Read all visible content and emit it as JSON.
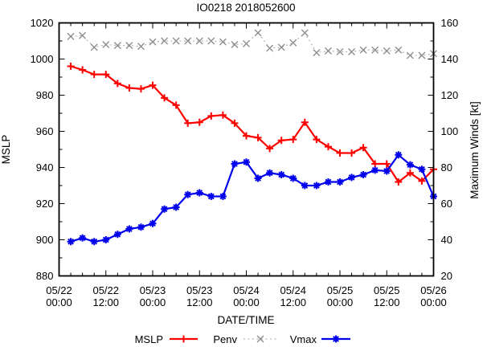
{
  "title": "IO0218 2018052600",
  "axes": {
    "y_left": {
      "label": "MSLP",
      "min": 880,
      "max": 1020,
      "major_step": 20,
      "minor_step": 10,
      "ticks": [
        1020,
        1000,
        980,
        960,
        940,
        920,
        900,
        880
      ]
    },
    "y_right": {
      "label": "Maximum Winds [kt]",
      "min": 20,
      "max": 160,
      "major_step": 20,
      "ticks": [
        160,
        140,
        120,
        100,
        80,
        60,
        40,
        20
      ]
    },
    "x": {
      "label": "DATE/TIME",
      "min_hours": 0,
      "max_hours": 96,
      "minor_step_hours": 3,
      "major_step_hours": 12,
      "tick_labels": [
        {
          "hours": 0,
          "date": "05/22",
          "time": "00:00"
        },
        {
          "hours": 12,
          "date": "05/22",
          "time": "12:00"
        },
        {
          "hours": 24,
          "date": "05/23",
          "time": "00:00"
        },
        {
          "hours": 36,
          "date": "05/23",
          "time": "12:00"
        },
        {
          "hours": 48,
          "date": "05/24",
          "time": "00:00"
        },
        {
          "hours": 60,
          "date": "05/24",
          "time": "12:00"
        },
        {
          "hours": 72,
          "date": "05/25",
          "time": "00:00"
        },
        {
          "hours": 84,
          "date": "05/25",
          "time": "12:00"
        },
        {
          "hours": 96,
          "date": "05/26",
          "time": "00:00"
        }
      ]
    }
  },
  "legend": {
    "position": "bottom-center",
    "items": [
      {
        "label": "MSLP",
        "color": "#ff0000",
        "marker_color": "#ff0000",
        "style": "solid",
        "marker": "plus"
      },
      {
        "label": "Penv",
        "color": "#a6a6a6",
        "marker_color": "#8c8c8c",
        "style": "dotted",
        "marker": "cross"
      },
      {
        "label": "Vmax",
        "color": "#0000ee",
        "marker_color": "#0000ee",
        "style": "solid",
        "marker": "star"
      }
    ]
  },
  "chart_data": {
    "type": "line",
    "title": "IO0218 2018052600",
    "xlabel": "DATE/TIME",
    "ylabel_left": "MSLP",
    "ylabel_right": "Maximum Winds [kt]",
    "y_left_range": [
      880,
      1020
    ],
    "y_right_range": [
      20,
      160
    ],
    "x_range_hours": [
      0,
      96
    ],
    "x_start": "05/22 00:00",
    "x_end": "05/26 00:00",
    "grid": false,
    "x_hours": [
      3,
      6,
      9,
      12,
      15,
      18,
      21,
      24,
      27,
      30,
      33,
      36,
      39,
      42,
      45,
      48,
      51,
      54,
      57,
      60,
      63,
      66,
      69,
      72,
      75,
      78,
      81,
      84,
      87,
      90,
      93,
      96
    ],
    "series": [
      {
        "name": "MSLP",
        "axis": "left",
        "color": "#ff0000",
        "marker": "plus",
        "linestyle": "solid",
        "values": [
          996,
          994,
          991.5,
          991.5,
          986.5,
          984,
          983.5,
          985.5,
          978.5,
          974.5,
          964.5,
          965,
          968.5,
          969,
          964.5,
          957.5,
          956.5,
          950.5,
          955,
          955.5,
          965,
          955.5,
          951.5,
          948,
          948,
          951,
          942,
          942,
          932,
          937,
          932.5,
          939
        ]
      },
      {
        "name": "Penv",
        "axis": "left",
        "color": "#a6a6a6",
        "marker": "cross",
        "linestyle": "dotted",
        "values": [
          1012.5,
          1013,
          1006.5,
          1008,
          1007.5,
          1007.5,
          1007,
          1009.5,
          1010,
          1010,
          1010,
          1010,
          1010,
          1009.5,
          1008,
          1008.5,
          1014.5,
          1006,
          1006.5,
          1009,
          1014.5,
          1003.5,
          1004.5,
          1004,
          1004,
          1005,
          1005,
          1004.5,
          1005,
          1002,
          1002,
          1003
        ]
      },
      {
        "name": "Vmax",
        "axis": "right",
        "units": "kt",
        "color": "#0000ee",
        "marker": "star",
        "linestyle": "solid",
        "values": [
          39,
          41,
          39,
          40,
          43,
          46,
          47,
          49,
          57,
          58,
          65,
          66,
          64,
          64,
          82,
          83,
          74,
          77,
          76,
          74,
          70,
          70,
          72,
          72,
          74.5,
          76,
          78.5,
          78,
          87,
          81.5,
          79,
          64
        ]
      }
    ]
  }
}
